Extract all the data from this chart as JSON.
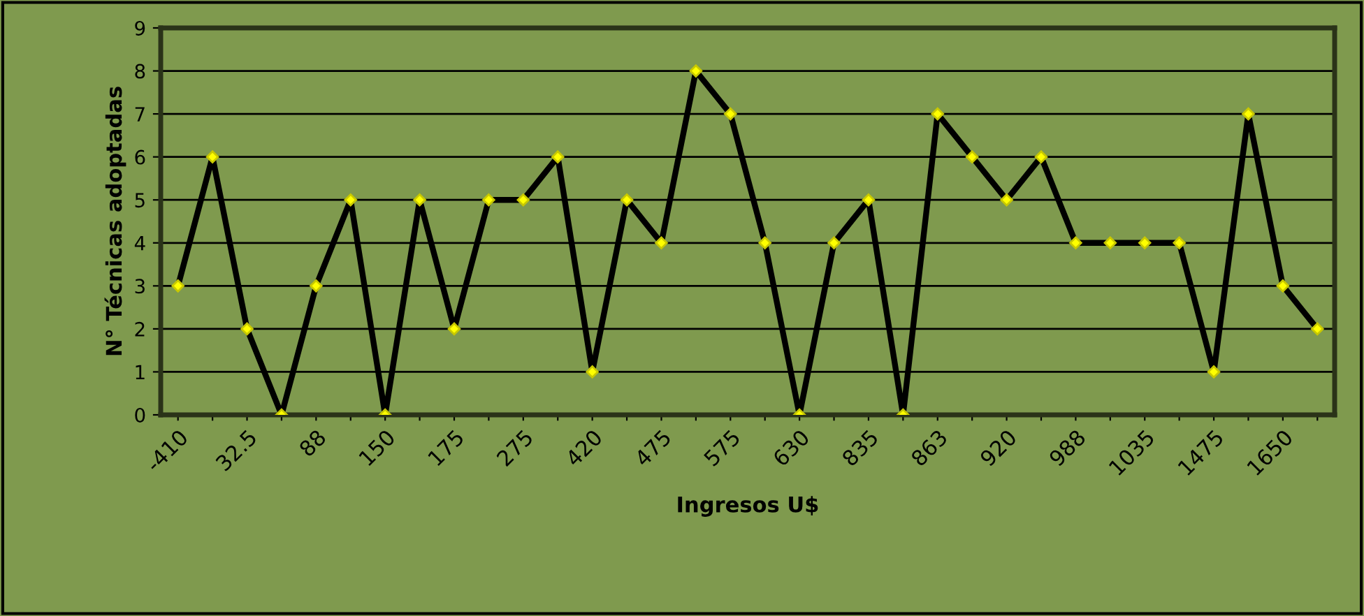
{
  "chart_data": {
    "type": "line",
    "xlabel": "Ingresos U$",
    "ylabel": "N° Técnicas adoptadas",
    "categories": [
      "-410",
      null,
      "32.5",
      null,
      "88",
      null,
      "150",
      null,
      "175",
      null,
      "275",
      null,
      "420",
      null,
      "475",
      null,
      "575",
      null,
      "630",
      null,
      "835",
      null,
      "863",
      null,
      "920",
      null,
      "988",
      null,
      "1035",
      null,
      "1475",
      null,
      "1650",
      null
    ],
    "series": [
      {
        "color": "#000000",
        "values": [
          3,
          6,
          2,
          0,
          3,
          5,
          0,
          5,
          2,
          5,
          5,
          6,
          1,
          5,
          4,
          8,
          7,
          4,
          0,
          4,
          5,
          0,
          7,
          6,
          5,
          6,
          4,
          4,
          4,
          4,
          1,
          7,
          3,
          2
        ]
      }
    ],
    "ylim": [
      0,
      9
    ],
    "yticks": [
      0,
      1,
      2,
      3,
      4,
      5,
      6,
      7,
      8,
      9
    ],
    "grid": "y",
    "marker": "diamond",
    "line_style": "solid",
    "legend": false
  }
}
